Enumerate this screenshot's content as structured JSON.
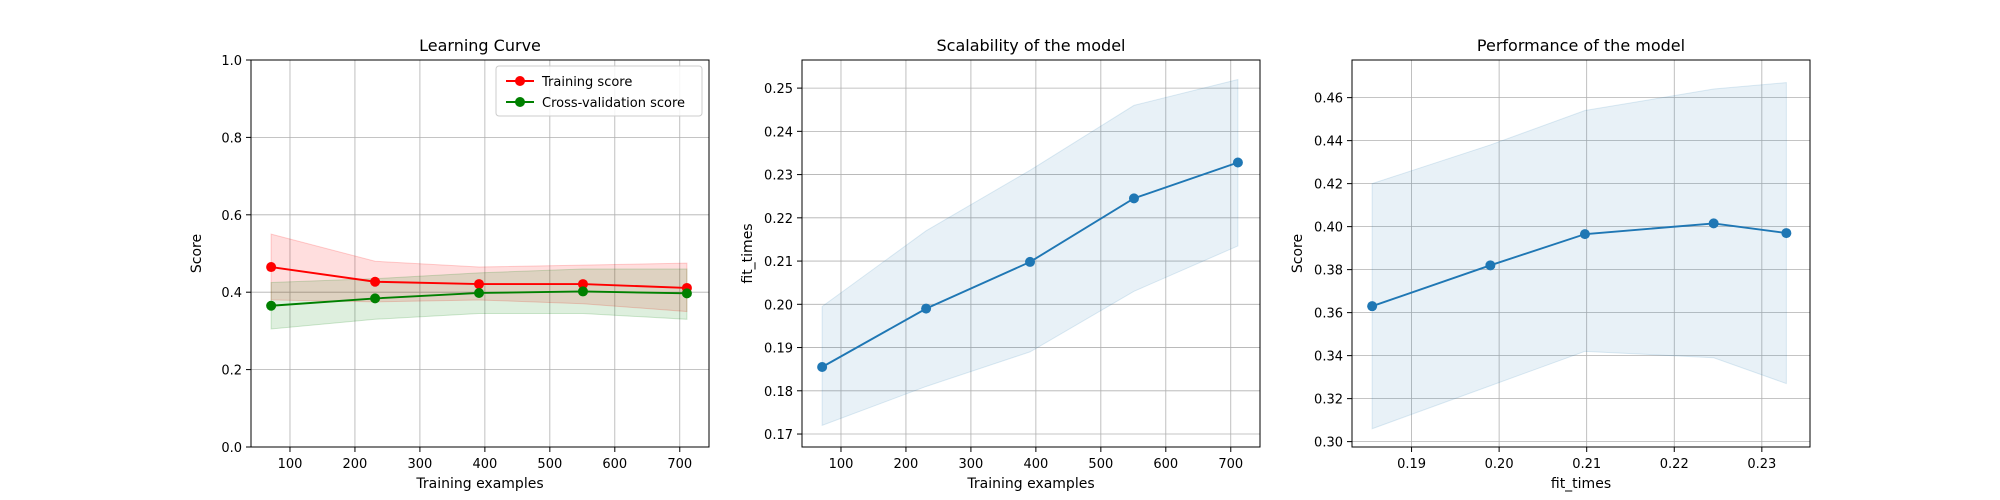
{
  "chart_data": [
    {
      "type": "line",
      "title": "Learning Curve",
      "xlabel": "Training examples",
      "ylabel": "Score",
      "xlim": [
        40,
        745
      ],
      "ylim": [
        0.0,
        1.0
      ],
      "xticks": [
        100,
        200,
        300,
        400,
        500,
        600,
        700
      ],
      "xtick_labels": [
        "100",
        "200",
        "300",
        "400",
        "500",
        "600",
        "700"
      ],
      "yticks": [
        0.0,
        0.2,
        0.4,
        0.6,
        0.8,
        1.0
      ],
      "ytick_labels": [
        "0.0",
        "0.2",
        "0.4",
        "0.6",
        "0.8",
        "1.0"
      ],
      "grid": true,
      "legend": "top-right",
      "x": [
        71,
        231,
        391,
        551,
        711
      ],
      "series": [
        {
          "name": "Training score",
          "color": "#ff0000",
          "values": [
            0.465,
            0.427,
            0.421,
            0.421,
            0.411
          ],
          "band_lower": [
            0.38,
            0.375,
            0.38,
            0.37,
            0.35
          ],
          "band_upper": [
            0.55,
            0.48,
            0.465,
            0.47,
            0.475
          ]
        },
        {
          "name": "Cross-validation score",
          "color": "#008000",
          "values": [
            0.365,
            0.384,
            0.398,
            0.402,
            0.397
          ],
          "band_lower": [
            0.305,
            0.33,
            0.345,
            0.345,
            0.33
          ],
          "band_upper": [
            0.425,
            0.435,
            0.45,
            0.46,
            0.46
          ]
        }
      ]
    },
    {
      "type": "line",
      "title": "Scalability of the model",
      "xlabel": "Training examples",
      "ylabel": "fit_times",
      "xlim": [
        40,
        745
      ],
      "ylim": [
        0.167,
        0.2565
      ],
      "xticks": [
        100,
        200,
        300,
        400,
        500,
        600,
        700
      ],
      "xtick_labels": [
        "100",
        "200",
        "300",
        "400",
        "500",
        "600",
        "700"
      ],
      "yticks": [
        0.17,
        0.18,
        0.19,
        0.2,
        0.21,
        0.22,
        0.23,
        0.24,
        0.25
      ],
      "ytick_labels": [
        "0.17",
        "0.18",
        "0.19",
        "0.20",
        "0.21",
        "0.22",
        "0.23",
        "0.24",
        "0.25"
      ],
      "grid": true,
      "x": [
        71,
        231,
        391,
        551,
        711
      ],
      "series": [
        {
          "color": "#1f77b4",
          "values": [
            0.1855,
            0.199,
            0.2098,
            0.2245,
            0.2328
          ],
          "band_lower": [
            0.172,
            0.181,
            0.189,
            0.203,
            0.2135
          ],
          "band_upper": [
            0.1995,
            0.217,
            0.231,
            0.246,
            0.252
          ]
        }
      ]
    },
    {
      "type": "line",
      "title": "Performance of the model",
      "xlabel": "fit_times",
      "ylabel": "Score",
      "xlim": [
        0.1832,
        0.2355
      ],
      "ylim": [
        0.2975,
        0.4775
      ],
      "xticks": [
        0.19,
        0.2,
        0.21,
        0.22,
        0.23
      ],
      "xtick_labels": [
        "0.19",
        "0.20",
        "0.21",
        "0.22",
        "0.23"
      ],
      "yticks": [
        0.3,
        0.32,
        0.34,
        0.36,
        0.38,
        0.4,
        0.42,
        0.44,
        0.46
      ],
      "ytick_labels": [
        "0.30",
        "0.32",
        "0.34",
        "0.36",
        "0.38",
        "0.40",
        "0.42",
        "0.44",
        "0.46"
      ],
      "grid": true,
      "x": [
        0.1855,
        0.199,
        0.2098,
        0.2245,
        0.2328
      ],
      "series": [
        {
          "color": "#1f77b4",
          "values": [
            0.363,
            0.382,
            0.3965,
            0.4015,
            0.397
          ],
          "band_lower": [
            0.306,
            0.326,
            0.342,
            0.339,
            0.327
          ],
          "band_upper": [
            0.42,
            0.438,
            0.454,
            0.464,
            0.467
          ]
        }
      ]
    }
  ]
}
